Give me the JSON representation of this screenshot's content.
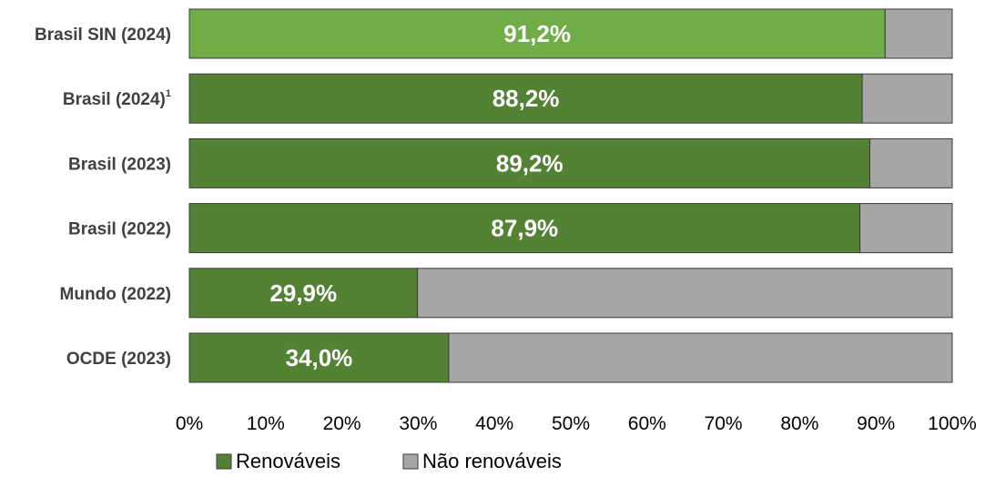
{
  "chart_data": {
    "type": "bar",
    "orientation": "horizontal",
    "stacked": true,
    "categories": [
      {
        "label": "Brasil SIN (2024)",
        "superscript": ""
      },
      {
        "label": "Brasil (2024)",
        "superscript": "1"
      },
      {
        "label": "Brasil (2023)",
        "superscript": ""
      },
      {
        "label": "Brasil (2022)",
        "superscript": ""
      },
      {
        "label": "Mundo (2022)",
        "superscript": ""
      },
      {
        "label": "OCDE (2023)",
        "superscript": ""
      }
    ],
    "series": [
      {
        "name": "Renováveis",
        "values": [
          91.2,
          88.2,
          89.2,
          87.9,
          29.9,
          34.0
        ],
        "data_labels": [
          "91,2%",
          "88,2%",
          "89,2%",
          "87,9%",
          "29,9%",
          "34,0%"
        ],
        "color": "#548235",
        "highlight": {
          "index": 0,
          "color": "#70AD47"
        }
      },
      {
        "name": "Não renováveis",
        "values": [
          8.8,
          11.8,
          10.8,
          12.1,
          70.1,
          66.0
        ],
        "color": "#A6A6A6"
      }
    ],
    "xlim": [
      0,
      100
    ],
    "xticks": [
      "0%",
      "10%",
      "20%",
      "30%",
      "40%",
      "50%",
      "60%",
      "70%",
      "80%",
      "90%",
      "100%"
    ],
    "grid": false,
    "legend_position": "bottom"
  }
}
